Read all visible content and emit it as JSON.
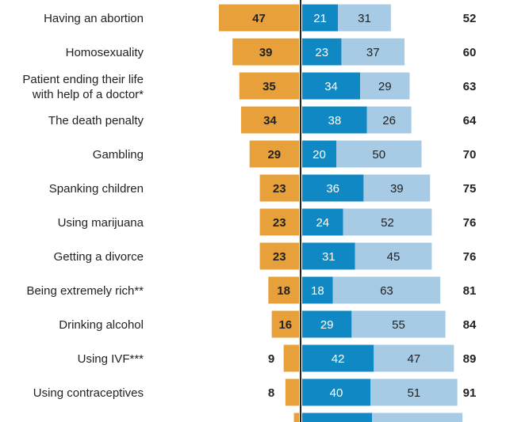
{
  "chart_data": {
    "type": "bar",
    "title": "",
    "xlabel": "",
    "ylabel": "",
    "colors": {
      "left": "#e8a13a",
      "right_dark": "#0f88c4",
      "right_light": "#a7cbe5",
      "axis": "#222222"
    },
    "categories": [
      [
        "Having an abortion"
      ],
      [
        "Homosexuality"
      ],
      [
        "Patient ending their life",
        "with help of a doctor*"
      ],
      [
        "The death penalty"
      ],
      [
        "Gambling"
      ],
      [
        "Spanking children"
      ],
      [
        "Using marijuana"
      ],
      [
        "Getting a divorce"
      ],
      [
        "Being extremely rich**"
      ],
      [
        "Drinking alcohol"
      ],
      [
        "Using IVF***"
      ],
      [
        "Using contraceptives"
      ],
      [
        ""
      ]
    ],
    "series": [
      {
        "values": [
          47,
          39,
          35,
          34,
          29,
          23,
          23,
          23,
          18,
          16,
          9,
          8,
          3
        ]
      },
      {
        "values": [
          21,
          23,
          34,
          38,
          20,
          36,
          24,
          31,
          18,
          29,
          42,
          40,
          41
        ]
      },
      {
        "values": [
          31,
          37,
          29,
          26,
          50,
          39,
          52,
          45,
          63,
          55,
          47,
          51,
          53
        ]
      }
    ],
    "labels": {
      "left": [
        "47",
        "39",
        "35",
        "34",
        "29",
        "23",
        "23",
        "23",
        "18",
        "16",
        "9",
        "8",
        ""
      ],
      "right_dark": [
        "21",
        "23",
        "34",
        "38",
        "20",
        "36",
        "24",
        "31",
        "18",
        "29",
        "42",
        "40",
        ""
      ],
      "right_light": [
        "31",
        "37",
        "29",
        "26",
        "50",
        "39",
        "52",
        "45",
        "63",
        "55",
        "47",
        "51",
        ""
      ],
      "total": [
        "52",
        "60",
        "63",
        "64",
        "70",
        "75",
        "76",
        "76",
        "81",
        "84",
        "89",
        "91",
        ""
      ]
    }
  }
}
